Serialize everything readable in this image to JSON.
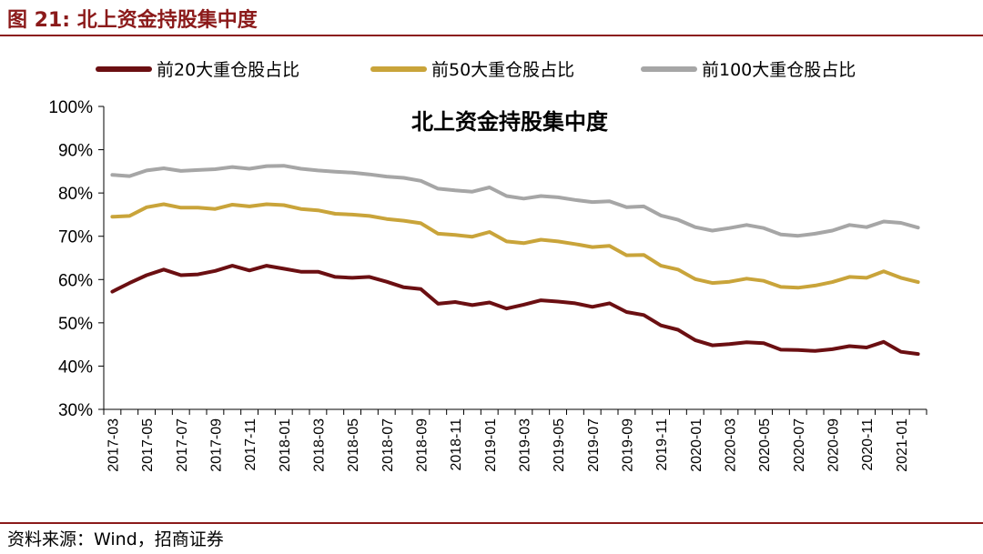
{
  "figure": {
    "title": "图 21:  北上资金持股集中度",
    "source": "资料来源：Wind，招商证券"
  },
  "chart_data": {
    "type": "line",
    "title": "北上资金持股集中度",
    "xlabel": "",
    "ylabel": "",
    "ylim": [
      30,
      100
    ],
    "yticks": [
      "30%",
      "40%",
      "50%",
      "60%",
      "70%",
      "80%",
      "90%",
      "100%"
    ],
    "grid": false,
    "legend": "top",
    "x": [
      "2017-03",
      "2017-04",
      "2017-05",
      "2017-06",
      "2017-07",
      "2017-08",
      "2017-09",
      "2017-10",
      "2017-11",
      "2017-12",
      "2018-01",
      "2018-02",
      "2018-03",
      "2018-04",
      "2018-05",
      "2018-06",
      "2018-07",
      "2018-08",
      "2018-09",
      "2018-10",
      "2018-11",
      "2018-12",
      "2019-01",
      "2019-02",
      "2019-03",
      "2019-04",
      "2019-05",
      "2019-06",
      "2019-07",
      "2019-08",
      "2019-09",
      "2019-10",
      "2019-11",
      "2019-12",
      "2020-01",
      "2020-02",
      "2020-03",
      "2020-04",
      "2020-05",
      "2020-06",
      "2020-07",
      "2020-08",
      "2020-09",
      "2020-10",
      "2020-11",
      "2020-12",
      "2021-01",
      "2021-02"
    ],
    "xtick_labels": [
      "2017-03",
      "2017-05",
      "2017-07",
      "2017-09",
      "2017-11",
      "2018-01",
      "2018-03",
      "2018-05",
      "2018-07",
      "2018-09",
      "2018-11",
      "2019-01",
      "2019-03",
      "2019-05",
      "2019-07",
      "2019-09",
      "2019-11",
      "2020-01",
      "2020-03",
      "2020-05",
      "2020-07",
      "2020-09",
      "2020-11",
      "2021-01"
    ],
    "series": [
      {
        "name": "前20大重仓股占比",
        "color": "#6b0f12",
        "values": [
          57.2,
          59.2,
          61.0,
          62.3,
          61.0,
          61.2,
          62.0,
          63.2,
          62.1,
          63.2,
          62.5,
          61.8,
          61.8,
          60.6,
          60.4,
          60.6,
          59.5,
          58.2,
          57.8,
          54.4,
          54.8,
          54.1,
          54.7,
          53.3,
          54.2,
          55.2,
          54.9,
          54.5,
          53.7,
          54.5,
          52.5,
          51.8,
          49.4,
          48.4,
          46.0,
          44.8,
          45.1,
          45.5,
          45.3,
          43.8,
          43.7,
          43.5,
          43.9,
          44.6,
          44.3,
          45.6,
          43.3,
          42.8
        ]
      },
      {
        "name": "前50大重仓股占比",
        "color": "#c9a43a",
        "values": [
          74.5,
          74.7,
          76.7,
          77.4,
          76.6,
          76.6,
          76.3,
          77.3,
          76.9,
          77.4,
          77.2,
          76.3,
          76.0,
          75.2,
          75.0,
          74.7,
          74.0,
          73.6,
          73.0,
          70.6,
          70.3,
          69.9,
          71.0,
          68.8,
          68.4,
          69.2,
          68.8,
          68.2,
          67.5,
          67.8,
          65.6,
          65.7,
          63.2,
          62.3,
          60.1,
          59.2,
          59.5,
          60.2,
          59.7,
          58.3,
          58.1,
          58.6,
          59.4,
          60.6,
          60.4,
          61.9,
          60.4,
          59.4
        ]
      },
      {
        "name": "前100大重仓股占比",
        "color": "#a6a6a6",
        "values": [
          84.2,
          83.9,
          85.2,
          85.7,
          85.1,
          85.3,
          85.5,
          86.0,
          85.6,
          86.2,
          86.3,
          85.6,
          85.2,
          84.9,
          84.7,
          84.3,
          83.8,
          83.5,
          82.8,
          81.0,
          80.6,
          80.3,
          81.3,
          79.3,
          78.7,
          79.3,
          79.0,
          78.4,
          77.9,
          78.1,
          76.7,
          76.9,
          74.8,
          73.8,
          72.1,
          71.3,
          71.9,
          72.6,
          71.9,
          70.4,
          70.1,
          70.6,
          71.3,
          72.6,
          72.1,
          73.4,
          73.1,
          72.0
        ]
      }
    ]
  }
}
